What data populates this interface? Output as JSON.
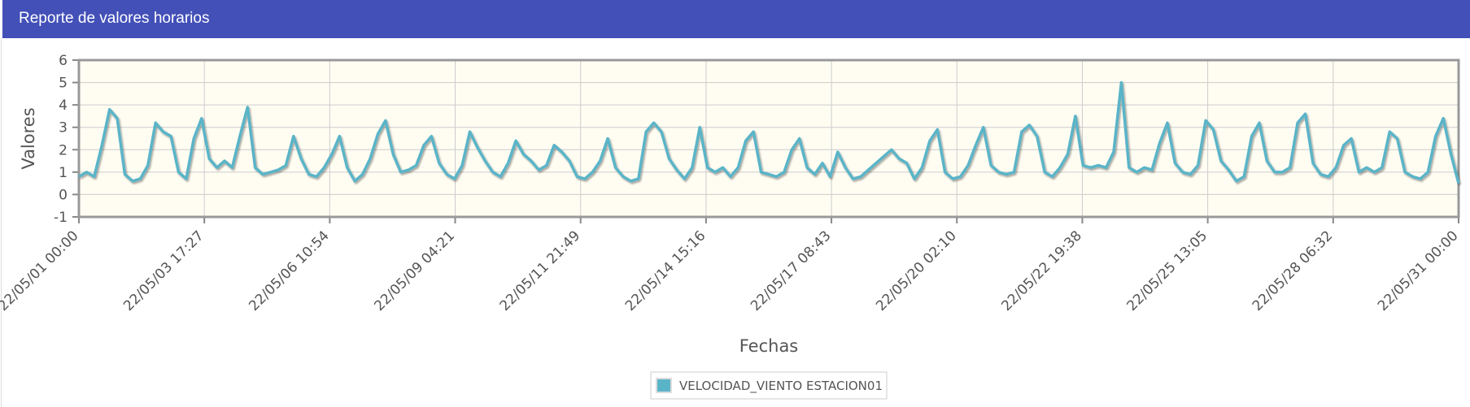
{
  "chart_data": {
    "type": "line",
    "title": "Reporte de valores horarios",
    "x_label": "Fechas",
    "y_label": "Valores",
    "x": [
      "22/05/01 00:00",
      "22/05/01 04:00",
      "22/05/01 08:00",
      "22/05/01 12:00",
      "22/05/01 16:00",
      "22/05/01 20:00",
      "22/05/02 00:00",
      "22/05/02 04:00",
      "22/05/02 08:00",
      "22/05/02 12:00",
      "22/05/02 16:00",
      "22/05/02 20:00",
      "22/05/03 00:00",
      "22/05/03 04:00",
      "22/05/03 08:00",
      "22/05/03 12:00",
      "22/05/03 16:00",
      "22/05/03 20:00",
      "22/05/04 00:00",
      "22/05/04 04:00",
      "22/05/04 08:00",
      "22/05/04 12:00",
      "22/05/04 16:00",
      "22/05/04 20:00",
      "22/05/05 00:00",
      "22/05/05 04:00",
      "22/05/05 08:00",
      "22/05/05 12:00",
      "22/05/05 16:00",
      "22/05/05 20:00",
      "22/05/06 00:00",
      "22/05/06 04:00",
      "22/05/06 08:00",
      "22/05/06 12:00",
      "22/05/06 16:00",
      "22/05/06 20:00",
      "22/05/07 00:00",
      "22/05/07 04:00",
      "22/05/07 08:00",
      "22/05/07 12:00",
      "22/05/07 16:00",
      "22/05/07 20:00",
      "22/05/08 00:00",
      "22/05/08 04:00",
      "22/05/08 08:00",
      "22/05/08 12:00",
      "22/05/08 16:00",
      "22/05/08 20:00",
      "22/05/09 00:00",
      "22/05/09 04:00",
      "22/05/09 08:00",
      "22/05/09 12:00",
      "22/05/09 16:00",
      "22/05/09 20:00",
      "22/05/10 00:00",
      "22/05/10 04:00",
      "22/05/10 08:00",
      "22/05/10 12:00",
      "22/05/10 16:00",
      "22/05/10 20:00",
      "22/05/11 00:00",
      "22/05/11 04:00",
      "22/05/11 08:00",
      "22/05/11 12:00",
      "22/05/11 16:00",
      "22/05/11 20:00",
      "22/05/12 00:00",
      "22/05/12 04:00",
      "22/05/12 08:00",
      "22/05/12 12:00",
      "22/05/12 16:00",
      "22/05/12 20:00",
      "22/05/13 00:00",
      "22/05/13 04:00",
      "22/05/13 08:00",
      "22/05/13 12:00",
      "22/05/13 16:00",
      "22/05/13 20:00",
      "22/05/14 00:00",
      "22/05/14 04:00",
      "22/05/14 08:00",
      "22/05/14 12:00",
      "22/05/14 16:00",
      "22/05/14 20:00",
      "22/05/15 00:00",
      "22/05/15 04:00",
      "22/05/15 08:00",
      "22/05/15 12:00",
      "22/05/15 16:00",
      "22/05/15 20:00",
      "22/05/16 00:00",
      "22/05/16 04:00",
      "22/05/16 08:00",
      "22/05/16 12:00",
      "22/05/16 16:00",
      "22/05/16 20:00",
      "22/05/17 00:00",
      "22/05/17 04:00",
      "22/05/17 08:00",
      "22/05/17 12:00",
      "22/05/17 16:00",
      "22/05/17 20:00",
      "22/05/18 00:00",
      "22/05/18 04:00",
      "22/05/18 08:00",
      "22/05/18 12:00",
      "22/05/18 16:00",
      "22/05/18 20:00",
      "22/05/19 00:00",
      "22/05/19 04:00",
      "22/05/19 08:00",
      "22/05/19 12:00",
      "22/05/19 16:00",
      "22/05/19 20:00",
      "22/05/20 00:00",
      "22/05/20 04:00",
      "22/05/20 08:00",
      "22/05/20 12:00",
      "22/05/20 16:00",
      "22/05/20 20:00",
      "22/05/21 00:00",
      "22/05/21 04:00",
      "22/05/21 08:00",
      "22/05/21 12:00",
      "22/05/21 16:00",
      "22/05/21 20:00",
      "22/05/22 00:00",
      "22/05/22 04:00",
      "22/05/22 08:00",
      "22/05/22 12:00",
      "22/05/22 16:00",
      "22/05/22 20:00",
      "22/05/23 00:00",
      "22/05/23 04:00",
      "22/05/23 08:00",
      "22/05/23 12:00",
      "22/05/23 16:00",
      "22/05/23 20:00",
      "22/05/24 00:00",
      "22/05/24 04:00",
      "22/05/24 08:00",
      "22/05/24 12:00",
      "22/05/24 16:00",
      "22/05/24 20:00",
      "22/05/25 00:00",
      "22/05/25 04:00",
      "22/05/25 08:00",
      "22/05/25 12:00",
      "22/05/25 16:00",
      "22/05/25 20:00",
      "22/05/26 00:00",
      "22/05/26 04:00",
      "22/05/26 08:00",
      "22/05/26 12:00",
      "22/05/26 16:00",
      "22/05/26 20:00",
      "22/05/27 00:00",
      "22/05/27 04:00",
      "22/05/27 08:00",
      "22/05/27 12:00",
      "22/05/27 16:00",
      "22/05/27 20:00",
      "22/05/28 00:00",
      "22/05/28 04:00",
      "22/05/28 08:00",
      "22/05/28 12:00",
      "22/05/28 16:00",
      "22/05/28 20:00",
      "22/05/29 00:00",
      "22/05/29 04:00",
      "22/05/29 08:00",
      "22/05/29 12:00",
      "22/05/29 16:00",
      "22/05/29 20:00",
      "22/05/30 00:00",
      "22/05/30 04:00",
      "22/05/30 08:00",
      "22/05/30 12:00",
      "22/05/30 16:00",
      "22/05/30 20:00",
      "22/05/31 00:00"
    ],
    "series": [
      {
        "name": "VELOCIDAD_VIENTO ESTACION01",
        "color": "#5ab4c8",
        "values": [
          0.8,
          1.0,
          0.8,
          2.2,
          3.8,
          3.4,
          0.9,
          0.6,
          0.7,
          1.3,
          3.2,
          2.8,
          2.6,
          1.0,
          0.7,
          2.5,
          3.4,
          1.6,
          1.2,
          1.5,
          1.2,
          2.6,
          3.9,
          1.2,
          0.9,
          1.0,
          1.1,
          1.3,
          2.6,
          1.6,
          0.9,
          0.8,
          1.2,
          1.8,
          2.6,
          1.2,
          0.6,
          0.9,
          1.6,
          2.7,
          3.3,
          1.8,
          1.0,
          1.1,
          1.3,
          2.2,
          2.6,
          1.4,
          0.9,
          0.7,
          1.3,
          2.8,
          2.1,
          1.5,
          1.0,
          0.8,
          1.4,
          2.4,
          1.8,
          1.5,
          1.1,
          1.3,
          2.2,
          1.9,
          1.5,
          0.8,
          0.7,
          1.0,
          1.5,
          2.5,
          1.2,
          0.8,
          0.6,
          0.7,
          2.8,
          3.2,
          2.8,
          1.6,
          1.1,
          0.7,
          1.2,
          3.0,
          1.2,
          1.0,
          1.2,
          0.8,
          1.2,
          2.4,
          2.8,
          1.0,
          0.9,
          0.8,
          1.0,
          2.0,
          2.5,
          1.2,
          0.9,
          1.4,
          0.8,
          1.9,
          1.2,
          0.7,
          0.8,
          1.1,
          1.4,
          1.7,
          2.0,
          1.6,
          1.4,
          0.7,
          1.2,
          2.4,
          2.9,
          1.0,
          0.7,
          0.8,
          1.3,
          2.2,
          3.0,
          1.3,
          1.0,
          0.9,
          1.0,
          2.8,
          3.1,
          2.6,
          1.0,
          0.8,
          1.2,
          1.8,
          3.5,
          1.3,
          1.2,
          1.3,
          1.2,
          1.9,
          5.0,
          1.2,
          1.0,
          1.2,
          1.1,
          2.3,
          3.2,
          1.4,
          1.0,
          0.9,
          1.3,
          3.3,
          2.9,
          1.5,
          1.1,
          0.6,
          0.8,
          2.6,
          3.2,
          1.5,
          1.0,
          1.0,
          1.2,
          3.2,
          3.6,
          1.4,
          0.9,
          0.8,
          1.2,
          2.2,
          2.5,
          1.0,
          1.2,
          1.0,
          1.2,
          2.8,
          2.5,
          1.0,
          0.8,
          0.7,
          1.0,
          2.6,
          3.4,
          1.8,
          0.5
        ]
      }
    ],
    "xlim": [
      "22/05/01 00:00",
      "22/05/31 00:00"
    ],
    "xticks": [
      "22/05/01 00:00",
      "22/05/03 17:27",
      "22/05/06 10:54",
      "22/05/09 04:21",
      "22/05/11 21:49",
      "22/05/14 15:16",
      "22/05/17 08:43",
      "22/05/20 02:10",
      "22/05/22 19:38",
      "22/05/25 13:05",
      "22/05/28 06:32",
      "22/05/31 00:00"
    ],
    "ylim": [
      -1,
      6
    ],
    "yticks": [
      -1,
      0,
      1,
      2,
      3,
      4,
      5,
      6
    ],
    "grid": true,
    "legend": "bottom"
  }
}
